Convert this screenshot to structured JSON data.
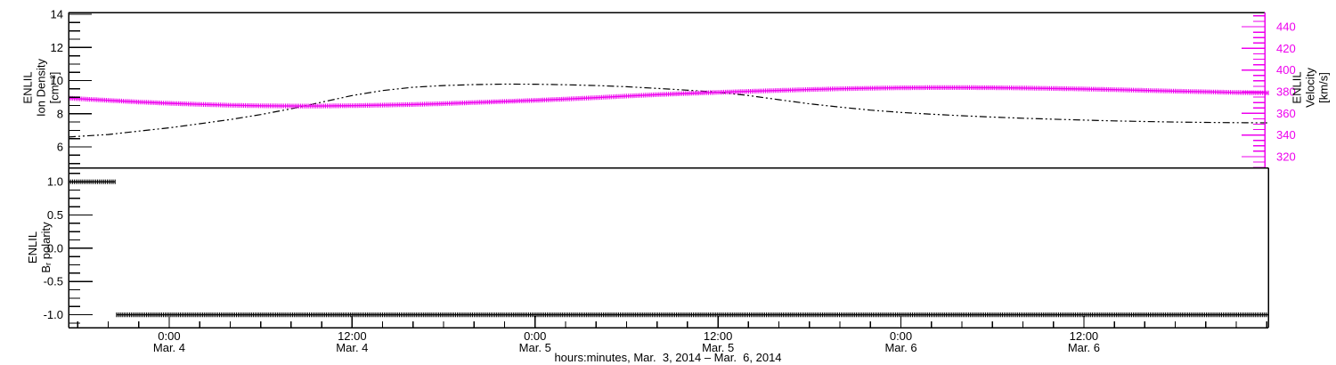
{
  "page": {
    "background": "#ffffff"
  },
  "chart_data": {
    "type": "line",
    "title": "",
    "x_axis": {
      "label": "hours:minutes, Mar.  3, 2014 – Mar.  6, 2014",
      "unit": "hours since Mar. 4, 2014 00:00",
      "range": [
        -6.6,
        72.1
      ],
      "minor_step_hours": 2,
      "major_ticks": [
        {
          "hours": 0,
          "line1": "0:00",
          "line2": "Mar. 4"
        },
        {
          "hours": 12,
          "line1": "12:00",
          "line2": "Mar. 4"
        },
        {
          "hours": 24,
          "line1": "0:00",
          "line2": "Mar. 5"
        },
        {
          "hours": 36,
          "line1": "12:00",
          "line2": "Mar. 5"
        },
        {
          "hours": 48,
          "line1": "0:00",
          "line2": "Mar. 6"
        },
        {
          "hours": 60,
          "line1": "12:00",
          "line2": "Mar. 6"
        }
      ]
    },
    "panels": [
      {
        "id": "density-velocity",
        "left_axis": {
          "title_lines": [
            "ENLIL",
            "Ion Density",
            "[cm⁻³]"
          ],
          "color": "#000000",
          "range": [
            4.74,
            14.11
          ],
          "minor_step": 0.5,
          "major_ticks": [
            {
              "v": 14,
              "label": "14"
            },
            {
              "v": 12,
              "label": "12"
            },
            {
              "v": 10,
              "label": "10"
            },
            {
              "v": 8,
              "label": "8"
            },
            {
              "v": 6,
              "label": "6"
            }
          ]
        },
        "right_axis": {
          "title_lines": [
            "ENLIL",
            "Velocity",
            "[km/s]"
          ],
          "color": "#ee00ee",
          "range": [
            309.7,
            453.2
          ],
          "minor_step": 5,
          "major_ticks": [
            {
              "v": 440,
              "label": "440"
            },
            {
              "v": 420,
              "label": "420"
            },
            {
              "v": 400,
              "label": "400"
            },
            {
              "v": 380,
              "label": "380"
            },
            {
              "v": 360,
              "label": "360"
            },
            {
              "v": 340,
              "label": "340"
            },
            {
              "v": 320,
              "label": "320"
            }
          ]
        },
        "series": [
          {
            "name": "enlil-ion-density",
            "axis": "left",
            "color": "#000000",
            "style": "dashdot",
            "points": [
              [
                -6.6,
                6.6
              ],
              [
                -4,
                6.75
              ],
              [
                -2,
                6.95
              ],
              [
                0,
                7.15
              ],
              [
                2,
                7.4
              ],
              [
                4,
                7.65
              ],
              [
                6,
                7.95
              ],
              [
                8,
                8.3
              ],
              [
                10,
                8.7
              ],
              [
                12,
                9.1
              ],
              [
                14,
                9.4
              ],
              [
                16,
                9.6
              ],
              [
                18,
                9.7
              ],
              [
                20,
                9.76
              ],
              [
                22,
                9.79
              ],
              [
                24,
                9.78
              ],
              [
                26,
                9.75
              ],
              [
                28,
                9.7
              ],
              [
                30,
                9.63
              ],
              [
                32,
                9.53
              ],
              [
                34,
                9.42
              ],
              [
                36,
                9.3
              ],
              [
                38,
                9.1
              ],
              [
                40,
                8.85
              ],
              [
                42,
                8.6
              ],
              [
                44,
                8.4
              ],
              [
                46,
                8.22
              ],
              [
                48,
                8.08
              ],
              [
                50,
                7.97
              ],
              [
                52,
                7.88
              ],
              [
                54,
                7.8
              ],
              [
                56,
                7.73
              ],
              [
                58,
                7.67
              ],
              [
                60,
                7.62
              ],
              [
                62,
                7.57
              ],
              [
                64,
                7.53
              ],
              [
                66,
                7.5
              ],
              [
                68,
                7.48
              ],
              [
                70,
                7.46
              ],
              [
                72.1,
                7.45
              ]
            ]
          },
          {
            "name": "enlil-velocity",
            "axis": "right",
            "color": "#ee00ee",
            "style": "plus",
            "points": [
              [
                -6.6,
                374
              ],
              [
                -4,
                372
              ],
              [
                -2,
                370.5
              ],
              [
                0,
                369.3
              ],
              [
                2,
                368.3
              ],
              [
                4,
                367.5
              ],
              [
                6,
                367
              ],
              [
                8,
                366.8
              ],
              [
                10,
                366.8
              ],
              [
                12,
                367.1
              ],
              [
                14,
                367.6
              ],
              [
                16,
                368.2
              ],
              [
                18,
                369
              ],
              [
                20,
                370
              ],
              [
                22,
                371
              ],
              [
                24,
                372
              ],
              [
                26,
                373.2
              ],
              [
                28,
                374.5
              ],
              [
                30,
                376
              ],
              [
                32,
                377.3
              ],
              [
                34,
                378.4
              ],
              [
                36,
                379.4
              ],
              [
                38,
                380.3
              ],
              [
                40,
                381.2
              ],
              [
                42,
                382
              ],
              [
                44,
                382.7
              ],
              [
                46,
                383.2
              ],
              [
                48,
                383.6
              ],
              [
                50,
                383.8
              ],
              [
                52,
                383.8
              ],
              [
                54,
                383.7
              ],
              [
                56,
                383.4
              ],
              [
                58,
                383
              ],
              [
                60,
                382.5
              ],
              [
                62,
                381.9
              ],
              [
                64,
                381.2
              ],
              [
                66,
                380.5
              ],
              [
                68,
                379.9
              ],
              [
                70,
                379.3
              ],
              [
                72.1,
                378.9
              ]
            ]
          }
        ]
      },
      {
        "id": "br-polarity",
        "left_axis": {
          "title_lines": [
            "ENLIL",
            "Bᵣ polarity"
          ],
          "color": "#000000",
          "range": [
            -1.193,
            1.21
          ],
          "minor_step": 0.125,
          "major_ticks": [
            {
              "v": 1.0,
              "label": "1.0"
            },
            {
              "v": 0.5,
              "label": "0.5"
            },
            {
              "v": 0.0,
              "label": "0.0"
            },
            {
              "v": -0.5,
              "label": "-0.5"
            },
            {
              "v": -1.0,
              "label": "-1.0"
            }
          ]
        },
        "series": [
          {
            "name": "enlil-br-polarity",
            "axis": "left",
            "color": "#000000",
            "style": "plus",
            "segments": [
              [
                [
                  -6.6,
                  1.0
                ],
                [
                  -3.55,
                  1.0
                ]
              ],
              [
                [
                  -3.45,
                  -1.0
                ],
                [
                  72.1,
                  -1.0
                ]
              ]
            ]
          }
        ]
      }
    ]
  }
}
